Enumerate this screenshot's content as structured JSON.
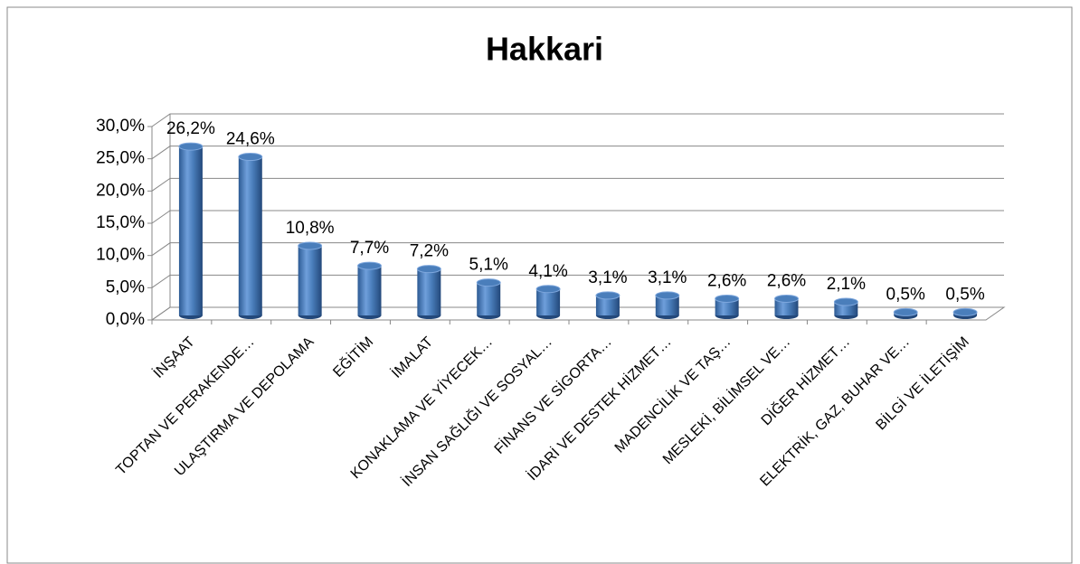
{
  "chart_data": {
    "type": "bar",
    "title": "Hakkari",
    "categories": [
      "İNŞAAT",
      "TOPTAN VE PERAKENDE…",
      "ULAŞTIRMA VE DEPOLAMA",
      "EĞİTİM",
      "İMALAT",
      "KONAKLAMA VE YİYECEK…",
      "İNSAN SAĞLIĞI VE SOSYAL…",
      "FİNANS VE SİGORTA…",
      "İDARİ VE DESTEK HİZMET…",
      "MADENCİLİK VE TAŞ…",
      "MESLEKİ, BİLİMSEL VE…",
      "DİĞER HİZMET…",
      "ELEKTRİK, GAZ, BUHAR VE…",
      "BİLGİ VE İLETİŞİM"
    ],
    "values": [
      26.2,
      24.6,
      10.8,
      7.7,
      7.2,
      5.1,
      4.1,
      3.1,
      3.1,
      2.6,
      2.6,
      2.1,
      0.5,
      0.5
    ],
    "value_labels": [
      "26,2%",
      "24,6%",
      "10,8%",
      "7,7%",
      "7,2%",
      "5,1%",
      "4,1%",
      "3,1%",
      "3,1%",
      "2,6%",
      "2,6%",
      "2,1%",
      "0,5%",
      "0,5%"
    ],
    "color": "#4a7ebb",
    "ylim": [
      0,
      30
    ],
    "yticks": [
      {
        "value": 0,
        "label": "0,0%"
      },
      {
        "value": 5,
        "label": "5,0%"
      },
      {
        "value": 10,
        "label": "10,0%"
      },
      {
        "value": 15,
        "label": "15,0%"
      },
      {
        "value": 20,
        "label": "20,0%"
      },
      {
        "value": 25,
        "label": "25,0%"
      },
      {
        "value": 30,
        "label": "30,0%"
      }
    ],
    "grid": true
  }
}
